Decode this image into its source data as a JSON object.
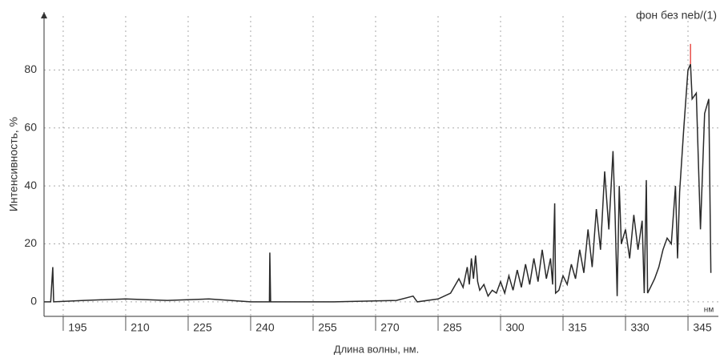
{
  "chart_data": {
    "type": "line",
    "legend_title": "фон без neb/(1)",
    "xlabel": "Длина волны, нм.",
    "ylabel": "Интенсивность, %",
    "x_unit": "нм",
    "xlim": [
      190.4,
      352.3
    ],
    "ylim": [
      -5,
      100
    ],
    "xticks": [
      195,
      210,
      225,
      240,
      255,
      270,
      285,
      300,
      315,
      330,
      345
    ],
    "yticks": [
      0,
      20,
      40,
      60,
      80
    ],
    "grid": true,
    "series": [
      {
        "name": "фон без neb/(1)",
        "color": "#2a2a2a",
        "x": [
          190.5,
          192,
          192.5,
          192.7,
          200,
          210,
          220,
          230,
          240,
          244.5,
          244.6,
          244.8,
          260,
          275,
          279,
          280,
          285,
          288,
          290,
          291,
          292,
          292.5,
          293,
          293.5,
          294,
          294.5,
          295,
          296,
          297,
          298,
          299,
          300,
          301,
          302,
          303,
          304,
          305,
          306,
          307,
          308,
          309,
          310,
          311,
          312,
          312.5,
          313,
          313.2,
          314,
          315,
          316,
          317,
          318,
          319,
          320,
          321,
          322,
          323,
          324,
          325,
          326,
          327,
          327.5,
          328,
          328.5,
          329,
          330,
          331,
          332,
          333,
          334,
          334.5,
          335,
          335.3,
          336,
          337,
          338,
          339,
          340,
          341,
          342,
          342.5,
          343,
          344,
          345,
          345.6,
          346,
          347,
          348,
          349,
          350,
          350.5
        ],
        "values": [
          0,
          0,
          12,
          0,
          0.5,
          1,
          0.5,
          1,
          0,
          0,
          17,
          0,
          0,
          0.5,
          2,
          0,
          1,
          3,
          8,
          5,
          12,
          6,
          15,
          8,
          16,
          7,
          4,
          6,
          2,
          4,
          3,
          7,
          3,
          9,
          4,
          11,
          5,
          13,
          6,
          15,
          7,
          18,
          8,
          15,
          6,
          34,
          3,
          4,
          9,
          6,
          13,
          8,
          18,
          10,
          25,
          12,
          32,
          18,
          45,
          25,
          52,
          30,
          2,
          40,
          20,
          25,
          15,
          30,
          18,
          28,
          3,
          42,
          3,
          5,
          8,
          12,
          18,
          22,
          20,
          40,
          15,
          38,
          60,
          80,
          82,
          70,
          72,
          25,
          65,
          70,
          10
        ]
      },
      {
        "color": "#e8504a",
        "x": [
          345.6,
          345.6
        ],
        "values": [
          82,
          89
        ]
      }
    ]
  }
}
